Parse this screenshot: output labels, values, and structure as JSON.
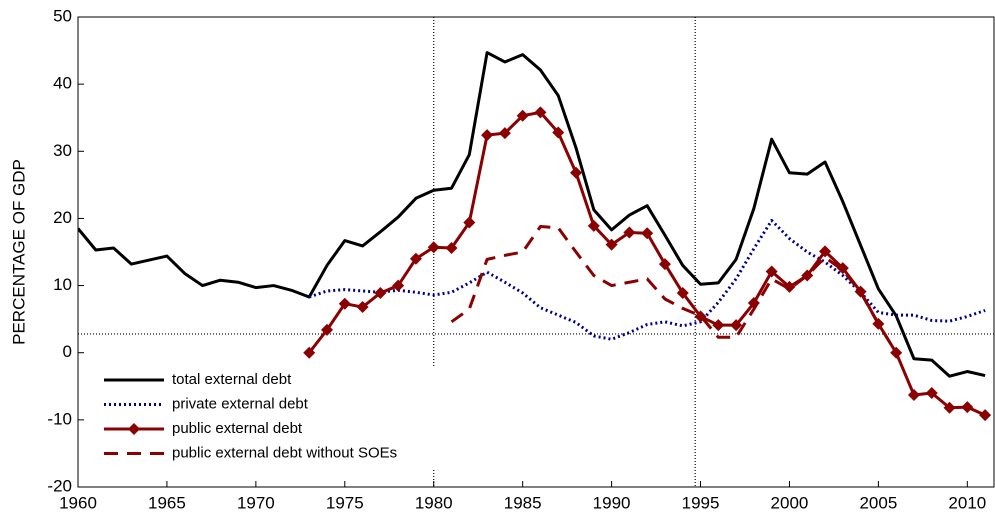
{
  "chart_data": {
    "type": "line",
    "ylabel": "PERCENTAGE OF GDP",
    "x": [
      1960,
      1961,
      1962,
      1963,
      1964,
      1965,
      1966,
      1967,
      1968,
      1969,
      1970,
      1971,
      1972,
      1973,
      1974,
      1975,
      1976,
      1977,
      1978,
      1979,
      1980,
      1981,
      1982,
      1983,
      1984,
      1985,
      1986,
      1987,
      1988,
      1989,
      1990,
      1991,
      1992,
      1993,
      1994,
      1995,
      1996,
      1997,
      1998,
      1999,
      2000,
      2001,
      2002,
      2003,
      2004,
      2005,
      2006,
      2007,
      2008,
      2009,
      2010,
      2011
    ],
    "series": [
      {
        "name": "total external debt",
        "color": "#000000",
        "style": "solid",
        "values": [
          18.5,
          15.3,
          15.6,
          13.2,
          13.8,
          14.4,
          11.8,
          10.0,
          10.8,
          10.5,
          9.7,
          10.0,
          9.3,
          8.3,
          13.0,
          16.7,
          15.9,
          18.0,
          20.2,
          23.0,
          24.2,
          24.5,
          29.5,
          44.7,
          43.3,
          44.4,
          42.1,
          38.3,
          30.5,
          21.3,
          18.3,
          20.5,
          21.9,
          17.5,
          13.0,
          10.2,
          10.4,
          13.9,
          21.5,
          31.8,
          26.8,
          26.6,
          28.4,
          22.5,
          16.0,
          9.5,
          5.5,
          -0.9,
          -1.1,
          -3.5,
          -2.8,
          -3.4
        ]
      },
      {
        "name": "private external debt",
        "color": "#00008b",
        "style": "dotted",
        "values": [
          null,
          null,
          null,
          null,
          null,
          null,
          null,
          null,
          null,
          null,
          null,
          null,
          null,
          8.3,
          9.2,
          9.4,
          9.2,
          9.0,
          9.3,
          9.0,
          8.6,
          9.0,
          10.4,
          12.0,
          10.5,
          8.9,
          6.7,
          5.6,
          4.5,
          2.5,
          2.0,
          3.0,
          4.2,
          4.6,
          4.0,
          4.6,
          7.5,
          11.0,
          15.5,
          19.7,
          17.0,
          15.0,
          13.5,
          11.5,
          9.0,
          6.0,
          5.6,
          5.6,
          4.8,
          4.7,
          5.4,
          6.3
        ]
      },
      {
        "name": "public external debt",
        "color": "#8b0000",
        "style": "solid-diamond",
        "values": [
          null,
          null,
          null,
          null,
          null,
          null,
          null,
          null,
          null,
          null,
          null,
          null,
          null,
          0.0,
          3.4,
          7.3,
          6.8,
          8.9,
          10.0,
          14.0,
          15.7,
          15.6,
          19.4,
          32.4,
          32.7,
          35.3,
          35.8,
          32.8,
          26.8,
          18.9,
          16.1,
          17.9,
          17.8,
          13.2,
          8.9,
          5.4,
          4.1,
          4.1,
          7.4,
          12.1,
          9.8,
          11.5,
          15.1,
          12.6,
          9.1,
          4.3,
          0.0,
          -6.3,
          -6.0,
          -8.2,
          -8.1,
          -9.3
        ]
      },
      {
        "name": "public external debt without SOEs",
        "color": "#8b0000",
        "style": "dashed",
        "values": [
          null,
          null,
          null,
          null,
          null,
          null,
          null,
          null,
          null,
          null,
          null,
          null,
          null,
          null,
          null,
          null,
          null,
          null,
          null,
          null,
          null,
          4.6,
          6.5,
          13.9,
          14.5,
          15.0,
          18.8,
          18.6,
          15.0,
          11.5,
          10.0,
          10.5,
          11.0,
          8.0,
          6.6,
          5.5,
          2.3,
          2.3,
          6.5,
          11.0,
          9.5,
          11.5,
          14.2,
          12.3,
          9.0,
          4.3,
          0.0,
          null,
          null,
          null,
          null,
          null
        ]
      }
    ],
    "xlim": [
      1960,
      2011.5
    ],
    "xticks": [
      1960,
      1965,
      1970,
      1975,
      1980,
      1985,
      1990,
      1995,
      2000,
      2005,
      2010
    ],
    "ylim": [
      -20,
      50
    ],
    "yticks": [
      -20,
      -10,
      0,
      10,
      20,
      30,
      40,
      50
    ],
    "reference_lines": {
      "x": [
        1980,
        1994.7
      ],
      "y": [
        2.8
      ]
    },
    "legend": "lower left"
  }
}
